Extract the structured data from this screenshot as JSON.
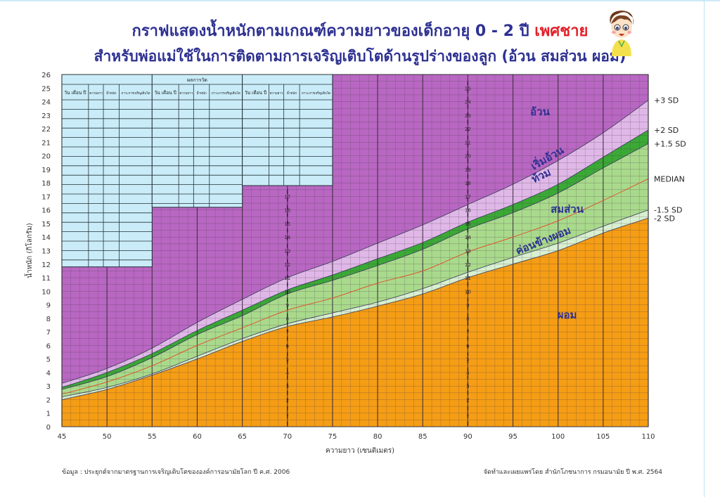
{
  "header": {
    "title_main": "กราฟแสดงน้ำหนักตามเกณฑ์ความยาวของเด็กอายุ 0 - 2 ปี",
    "title_sex": "เพศชาย",
    "subtitle": "สำหรับพ่อแม่ใช้ในการติดตามการเจริญเติบโตด้านรูปร่างของลูก (อ้วน สมส่วน ผอม)"
  },
  "footer": {
    "source": "ข้อมูล : ประยุกต์จากมาตรฐานการเจริญเติบโตขององค์การอนามัยโลก ปี ค.ศ. 2006",
    "publisher": "จัดทำและเผยแพร่โดย สำนักโภชนาการ กรมอนามัย ปี พ.ศ. 2564"
  },
  "record_table": {
    "title": "ผลการวัด",
    "columns": [
      "วัน เดือน ปี",
      "ความยาว",
      "น้ำหนัก",
      "ภาวะการเจริญเติบโต"
    ],
    "fill_color": "#c9ecf8"
  },
  "chart_data": {
    "type": "area",
    "title": "",
    "xlabel": "ความยาว (เซนติเมตร)",
    "ylabel": "น้ำหนัก (กิโลกรัม)",
    "xlim": [
      45,
      110
    ],
    "ylim": [
      0,
      26
    ],
    "x_ticks": [
      45,
      50,
      55,
      60,
      65,
      70,
      75,
      80,
      85,
      90,
      95,
      100,
      105,
      110
    ],
    "y_ticks": [
      0,
      1,
      2,
      3,
      4,
      5,
      6,
      7,
      8,
      9,
      10,
      11,
      12,
      13,
      14,
      15,
      16,
      17,
      18,
      19,
      20,
      21,
      22,
      23,
      24,
      25,
      26
    ],
    "grid": true,
    "inner_axes": [
      {
        "x": 70,
        "labels": [
          1,
          2,
          3,
          4,
          5,
          6,
          7,
          8,
          9,
          10,
          11,
          12,
          13,
          14,
          15,
          16,
          17
        ]
      },
      {
        "x": 90,
        "labels": [
          1,
          2,
          3,
          4,
          5,
          6,
          7,
          8,
          9,
          10,
          11,
          12,
          13,
          14,
          15,
          16,
          17,
          18,
          19,
          20,
          21,
          22,
          23,
          24,
          25
        ]
      }
    ],
    "x": [
      45,
      50,
      55,
      60,
      65,
      70,
      75,
      80,
      85,
      90,
      95,
      100,
      105,
      110
    ],
    "series": [
      {
        "name": "+3 SD",
        "values": [
          3.2,
          4.3,
          5.8,
          7.7,
          9.4,
          11.0,
          12.2,
          13.55,
          14.9,
          16.4,
          17.9,
          19.65,
          21.7,
          24.1
        ]
      },
      {
        "name": "+2 SD",
        "values": [
          2.9,
          4.0,
          5.4,
          7.1,
          8.6,
          10.1,
          11.2,
          12.4,
          13.6,
          15.1,
          16.4,
          17.9,
          19.9,
          21.9
        ]
      },
      {
        "name": "+1.5 SD",
        "values": [
          2.75,
          3.7,
          5.1,
          6.8,
          8.2,
          9.8,
          10.8,
          11.9,
          13.1,
          14.6,
          15.8,
          17.25,
          19.1,
          20.9
        ]
      },
      {
        "name": "MEDIAN",
        "values": [
          2.4,
          3.3,
          4.5,
          6.0,
          7.3,
          8.6,
          9.5,
          10.6,
          11.5,
          12.9,
          14.0,
          15.2,
          16.7,
          18.3
        ]
      },
      {
        "name": "-1.5 SD",
        "values": [
          2.2,
          2.9,
          3.9,
          5.2,
          6.5,
          7.6,
          8.4,
          9.2,
          10.2,
          11.4,
          12.5,
          13.55,
          14.8,
          16.0
        ]
      },
      {
        "name": "-2 SD",
        "values": [
          2.0,
          2.75,
          3.8,
          5.0,
          6.3,
          7.4,
          8.1,
          8.9,
          9.8,
          11.0,
          12.0,
          13.0,
          14.3,
          15.4
        ]
      }
    ],
    "zones": [
      {
        "label": "อ้วน",
        "color": "#b867c2"
      },
      {
        "label": "เริ่มอ้วน",
        "color": "#e0b8e8"
      },
      {
        "label": "ท้วม",
        "color": "#3aa935"
      },
      {
        "label": "สมส่วน",
        "color": "#a9da8c"
      },
      {
        "label": "ค่อนข้างผอม",
        "color": "#d8f0d0"
      },
      {
        "label": "ผอม",
        "color": "#f59d14"
      }
    ],
    "median_color": "#e0552c",
    "label_color": "#2e3192"
  }
}
